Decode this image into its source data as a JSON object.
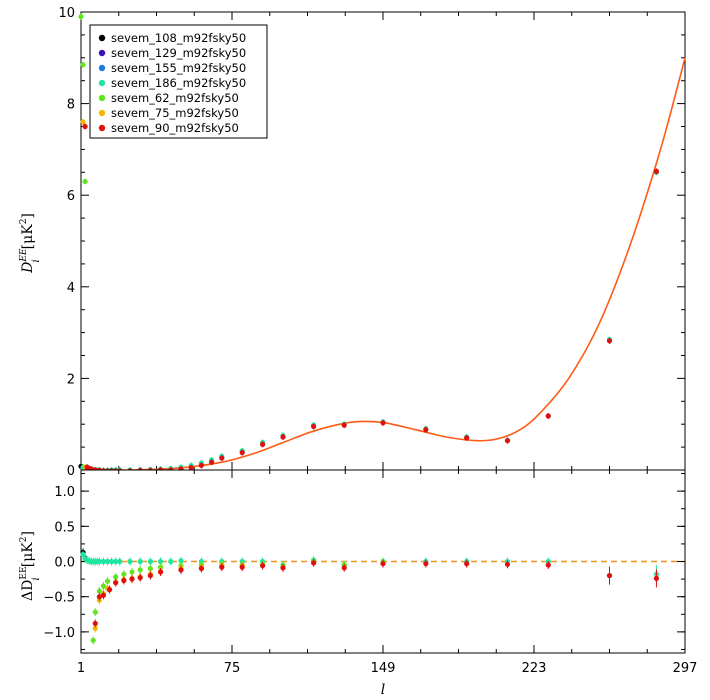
{
  "chart_data": [
    {
      "panel": "top",
      "type": "scatter",
      "xlabel": "l",
      "ylabel_main": "D",
      "ylabel_sup": "EE",
      "ylabel_sub": "i",
      "ylabel_unit": "[μK",
      "ylabel_unit_sup": "2",
      "ylabel_unit_close": "]",
      "xlim": [
        1,
        297
      ],
      "ylim": [
        0,
        10
      ],
      "xticks": [
        1,
        75,
        149,
        223,
        297
      ],
      "xtick_labels": [
        "1",
        "75",
        "149",
        "223",
        "297"
      ],
      "yticks": [
        0,
        2,
        4,
        6,
        8,
        10
      ],
      "ytick_labels": [
        "0",
        "2",
        "4",
        "6",
        "8",
        "10"
      ],
      "legend_position": "top-left",
      "model_curve": {
        "color": "#ff5a14",
        "x": [
          1,
          10,
          25,
          40,
          55,
          70,
          85,
          100,
          115,
          130,
          140,
          150,
          165,
          180,
          195,
          205,
          215,
          225,
          240,
          255,
          270,
          285,
          297
        ],
        "y": [
          0.0,
          0.0,
          0.0,
          0.02,
          0.07,
          0.17,
          0.35,
          0.6,
          0.85,
          1.02,
          1.06,
          1.03,
          0.88,
          0.72,
          0.64,
          0.68,
          0.85,
          1.2,
          2.0,
          3.2,
          4.9,
          7.0,
          9.0
        ]
      },
      "series": [
        {
          "name": "sevem_108_m92fsky50",
          "color": "#000000",
          "x": [
            1,
            2,
            3,
            4,
            5,
            6
          ],
          "y": [
            0.08,
            0.04,
            0.03,
            0.02,
            0.01,
            0.01
          ]
        },
        {
          "name": "sevem_129_m92fsky50",
          "color": "#3a10b8",
          "x": [
            2,
            3,
            4,
            5,
            6
          ],
          "y": [
            0.04,
            0.03,
            0.02,
            0.01,
            0.01
          ]
        },
        {
          "name": "sevem_155_m92fsky50",
          "color": "#1e7ae6",
          "x": [
            2,
            3,
            4,
            5,
            6
          ],
          "y": [
            0.04,
            0.03,
            0.02,
            0.01,
            0.01
          ]
        },
        {
          "name": "sevem_186_m92fsky50",
          "color": "#1ee6a0",
          "x": [
            2,
            3,
            4,
            5,
            6,
            7,
            8,
            9,
            10,
            12,
            14,
            16,
            18,
            20,
            25,
            30,
            35,
            40,
            45,
            50,
            55,
            60,
            65,
            70,
            80,
            90,
            100,
            115,
            130,
            149,
            170,
            190,
            210,
            230,
            260,
            283
          ],
          "y": [
            0.06,
            0.05,
            0.04,
            0.03,
            0.02,
            0.01,
            0.0,
            0.0,
            0.0,
            -0.01,
            -0.01,
            0.0,
            0.0,
            0.0,
            0.0,
            0.0,
            0.01,
            0.02,
            0.03,
            0.06,
            0.1,
            0.15,
            0.22,
            0.3,
            0.42,
            0.6,
            0.75,
            0.98,
            1.0,
            1.05,
            0.9,
            0.72,
            0.65,
            1.18,
            2.85,
            6.5
          ]
        },
        {
          "name": "sevem_62_m92fsky50",
          "color": "#5fe61e",
          "x": [
            1,
            2,
            3,
            4,
            5,
            6
          ],
          "y": [
            9.9,
            8.85,
            6.3,
            0.06,
            0.03,
            0.02
          ]
        },
        {
          "name": "sevem_75_m92fsky50",
          "color": "#f5b800",
          "x": [
            2,
            3,
            4,
            5,
            6
          ],
          "y": [
            7.6,
            0.06,
            0.03,
            0.02,
            0.01
          ]
        },
        {
          "name": "sevem_90_m92fsky50",
          "color": "#e01010",
          "x": [
            3,
            4,
            5,
            6,
            8,
            10,
            12,
            14,
            16,
            18,
            20,
            25,
            30,
            35,
            40,
            45,
            50,
            55,
            60,
            65,
            70,
            80,
            90,
            100,
            115,
            130,
            149,
            170,
            190,
            210,
            230,
            260,
            283
          ],
          "y": [
            7.5,
            0.06,
            0.03,
            0.02,
            0.0,
            -0.01,
            -0.02,
            -0.02,
            -0.02,
            -0.02,
            -0.02,
            -0.02,
            -0.01,
            -0.01,
            0.0,
            0.0,
            0.02,
            0.05,
            0.1,
            0.17,
            0.26,
            0.38,
            0.56,
            0.72,
            0.95,
            0.98,
            1.03,
            0.88,
            0.7,
            0.64,
            1.18,
            2.82,
            6.52
          ]
        }
      ]
    },
    {
      "panel": "bottom",
      "type": "scatter",
      "xlabel": "l",
      "ylabel_main": "ΔD",
      "ylabel_sup": "EE",
      "ylabel_sub": "i",
      "ylabel_unit": "[μK",
      "ylabel_unit_sup": "2",
      "ylabel_unit_close": "]",
      "xlim": [
        1,
        297
      ],
      "ylim": [
        -1.3,
        1.3
      ],
      "yticks": [
        -1.0,
        -0.5,
        0.0,
        0.5,
        1.0
      ],
      "ytick_labels": [
        "−1.0",
        "−0.5",
        "0.0",
        "0.5",
        "1.0"
      ],
      "zero_line": {
        "y": 0,
        "color": "#f0961e",
        "style": "dashed"
      },
      "series": [
        {
          "name": "sevem_108_m92fsky50",
          "color": "#000000",
          "x": [
            2,
            3
          ],
          "y": [
            0.13,
            0.05
          ]
        },
        {
          "name": "sevem_186_m92fsky50",
          "color": "#1ee6a0",
          "x": [
            2,
            3,
            4,
            5,
            6,
            7,
            8,
            9,
            10,
            12,
            14,
            16,
            18,
            20,
            25,
            30,
            35,
            40,
            45,
            50,
            60,
            70,
            80,
            90,
            100,
            115,
            130,
            149,
            170,
            190,
            210,
            230,
            260,
            283
          ],
          "y": [
            0.1,
            0.04,
            0.02,
            0.01,
            0.0,
            0.0,
            0.0,
            0.0,
            0.0,
            0.0,
            0.0,
            0.0,
            0.0,
            0.0,
            0.0,
            0.0,
            0.0,
            0.0,
            0.0,
            0.01,
            0.0,
            0.0,
            0.0,
            0.0,
            -0.05,
            0.02,
            -0.05,
            0.0,
            0.0,
            0.0,
            0.0,
            0.0,
            -0.2,
            -0.18
          ]
        },
        {
          "name": "sevem_62_m92fsky50",
          "color": "#5fe61e",
          "x": [
            7,
            8,
            10,
            12,
            14,
            18,
            22,
            26,
            30,
            35,
            40,
            50,
            60,
            70,
            80,
            90,
            100,
            115,
            130,
            149
          ],
          "y": [
            -1.12,
            -0.72,
            -0.42,
            -0.35,
            -0.28,
            -0.22,
            -0.18,
            -0.15,
            -0.12,
            -0.1,
            -0.08,
            -0.06,
            -0.05,
            -0.04,
            -0.05,
            -0.04,
            -0.06,
            0.0,
            -0.05,
            -0.01
          ]
        },
        {
          "name": "sevem_75_m92fsky50",
          "color": "#f5b800",
          "x": [
            8,
            10,
            12,
            14,
            18,
            22,
            26,
            30,
            35,
            40,
            50,
            60,
            70,
            80
          ],
          "y": [
            -0.95,
            -0.55,
            -0.46,
            -0.38,
            -0.3,
            -0.26,
            -0.24,
            -0.22,
            -0.18,
            -0.14,
            -0.1,
            -0.08,
            -0.06,
            -0.06
          ]
        },
        {
          "name": "sevem_90_m92fsky50",
          "color": "#e01010",
          "x": [
            8,
            10,
            12,
            15,
            18,
            22,
            26,
            30,
            35,
            40,
            50,
            60,
            70,
            80,
            90,
            100,
            115,
            130,
            149,
            170,
            190,
            210,
            230,
            260,
            283
          ],
          "y": [
            -0.88,
            -0.5,
            -0.48,
            -0.4,
            -0.3,
            -0.27,
            -0.25,
            -0.23,
            -0.2,
            -0.15,
            -0.12,
            -0.1,
            -0.08,
            -0.08,
            -0.06,
            -0.09,
            -0.02,
            -0.09,
            -0.03,
            -0.03,
            -0.03,
            -0.04,
            -0.05,
            -0.2,
            -0.24
          ]
        }
      ]
    }
  ]
}
